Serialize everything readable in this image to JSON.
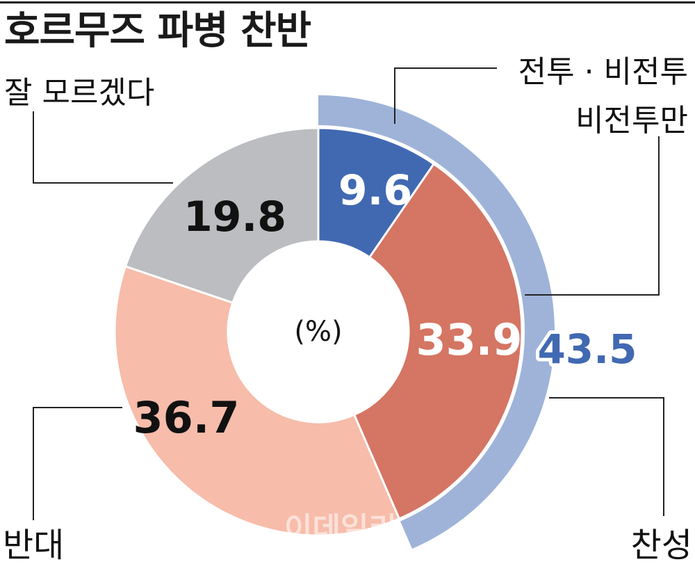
{
  "title": "호르무즈 파병 찬반",
  "chart_data": {
    "type": "pie",
    "unit": "(%)",
    "slices": [
      {
        "name": "전투 · 비전투",
        "value": 9.6,
        "color": "#4169b2"
      },
      {
        "name": "비전투만",
        "value": 33.9,
        "color": "#d57563"
      },
      {
        "name": "반대",
        "value": 36.7,
        "color": "#f7bcaa"
      },
      {
        "name": "잘 모르겠다",
        "value": 19.8,
        "color": "#bbbdc0"
      }
    ],
    "group": {
      "name": "찬성",
      "value": 43.5,
      "color": "#9fb3d9"
    }
  },
  "watermark": "이데일리"
}
